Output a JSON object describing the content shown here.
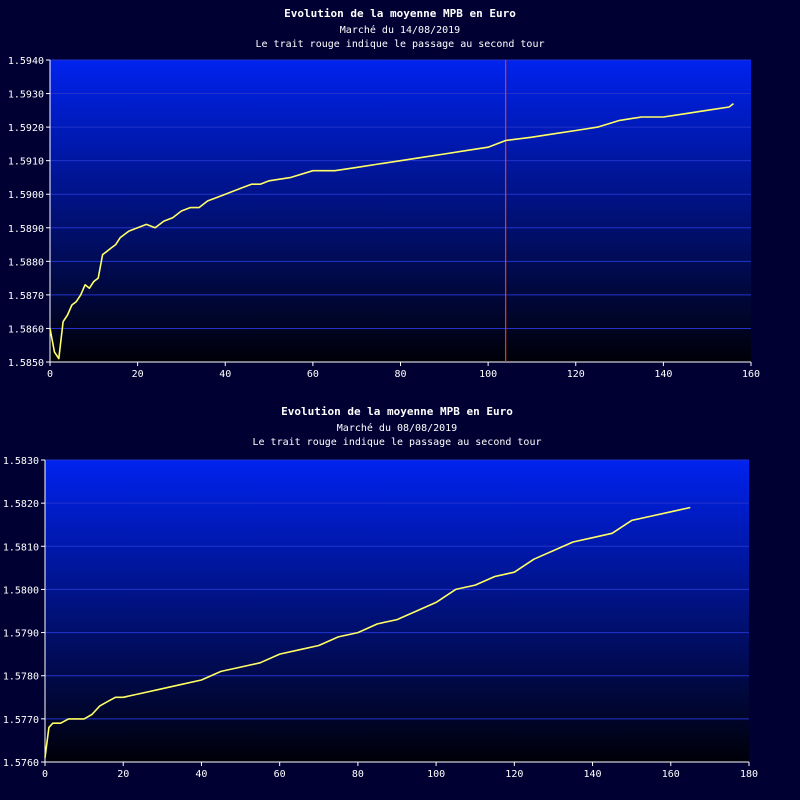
{
  "colors": {
    "background": "#000033",
    "plot_top": "#0022ee",
    "plot_bottom": "#000008",
    "grid": "#2233cc",
    "line": "#ffff66",
    "marker": "#ff3300",
    "text": "#ffffff"
  },
  "chart_data": [
    {
      "type": "line",
      "title": "Evolution de la moyenne MPB en Euro",
      "subtitle_1": "Marché du 14/08/2019",
      "subtitle_2": "Le trait rouge indique le passage au second tour",
      "xlim": [
        0,
        160
      ],
      "ylim": [
        1.585,
        1.594
      ],
      "xticks": [
        0,
        20,
        40,
        60,
        80,
        100,
        120,
        140,
        160
      ],
      "xtick_labels": [
        "0",
        "20",
        "40",
        "60",
        "80",
        "100",
        "120",
        "140",
        "160"
      ],
      "yticks": [
        1.585,
        1.586,
        1.587,
        1.588,
        1.589,
        1.59,
        1.591,
        1.592,
        1.593,
        1.594
      ],
      "ytick_labels": [
        "1.5850",
        "1.5860",
        "1.5870",
        "1.5880",
        "1.5890",
        "1.5900",
        "1.5910",
        "1.5920",
        "1.5930",
        "1.5940"
      ],
      "grid": true,
      "marker_x": 104,
      "series": [
        {
          "x": [
            0,
            1,
            2,
            3,
            4,
            5,
            6,
            7,
            8,
            9,
            10,
            11,
            12,
            13,
            14,
            15,
            16,
            18,
            20,
            22,
            24,
            26,
            28,
            30,
            32,
            34,
            36,
            38,
            40,
            42,
            44,
            46,
            48,
            50,
            55,
            60,
            65,
            70,
            75,
            80,
            85,
            90,
            95,
            100,
            104,
            110,
            115,
            120,
            125,
            130,
            135,
            140,
            145,
            150,
            155,
            156
          ],
          "y": [
            1.586,
            1.5853,
            1.5851,
            1.5862,
            1.5864,
            1.5867,
            1.5868,
            1.587,
            1.5873,
            1.5872,
            1.5874,
            1.5875,
            1.5882,
            1.5883,
            1.5884,
            1.5885,
            1.5887,
            1.5889,
            1.589,
            1.5891,
            1.589,
            1.5892,
            1.5893,
            1.5895,
            1.5896,
            1.5896,
            1.5898,
            1.5899,
            1.59,
            1.5901,
            1.5902,
            1.5903,
            1.5903,
            1.5904,
            1.5905,
            1.5907,
            1.5907,
            1.5908,
            1.5909,
            1.591,
            1.5911,
            1.5912,
            1.5913,
            1.5914,
            1.5916,
            1.5917,
            1.5918,
            1.5919,
            1.592,
            1.5922,
            1.5923,
            1.5923,
            1.5924,
            1.5925,
            1.5926,
            1.5927
          ]
        }
      ]
    },
    {
      "type": "line",
      "title": "Evolution de la moyenne MPB en Euro",
      "subtitle_1": "Marché du 08/08/2019",
      "subtitle_2": "Le trait rouge indique le passage au second tour",
      "xlim": [
        0,
        180
      ],
      "ylim": [
        1.576,
        1.583
      ],
      "xticks": [
        0,
        20,
        40,
        60,
        80,
        100,
        120,
        140,
        160,
        180
      ],
      "xtick_labels": [
        "0",
        "20",
        "40",
        "60",
        "80",
        "100",
        "120",
        "140",
        "160",
        "180"
      ],
      "yticks": [
        1.576,
        1.577,
        1.578,
        1.579,
        1.58,
        1.581,
        1.582,
        1.583
      ],
      "ytick_labels": [
        "1.5760",
        "1.5770",
        "1.5780",
        "1.5790",
        "1.5800",
        "1.5810",
        "1.5820",
        "1.5830"
      ],
      "grid": true,
      "series": [
        {
          "x": [
            0,
            1,
            2,
            4,
            6,
            8,
            10,
            12,
            14,
            16,
            18,
            20,
            25,
            30,
            35,
            40,
            45,
            50,
            55,
            60,
            65,
            70,
            75,
            80,
            85,
            90,
            95,
            100,
            105,
            110,
            115,
            120,
            125,
            130,
            135,
            140,
            145,
            150,
            155,
            160,
            165
          ],
          "y": [
            1.5761,
            1.5768,
            1.5769,
            1.5769,
            1.577,
            1.577,
            1.577,
            1.5771,
            1.5773,
            1.5774,
            1.5775,
            1.5775,
            1.5776,
            1.5777,
            1.5778,
            1.5779,
            1.5781,
            1.5782,
            1.5783,
            1.5785,
            1.5786,
            1.5787,
            1.5789,
            1.579,
            1.5792,
            1.5793,
            1.5795,
            1.5797,
            1.58,
            1.5801,
            1.5803,
            1.5804,
            1.5807,
            1.5809,
            1.5811,
            1.5812,
            1.5813,
            1.5816,
            1.5817,
            1.5818,
            1.5819
          ]
        }
      ]
    }
  ]
}
